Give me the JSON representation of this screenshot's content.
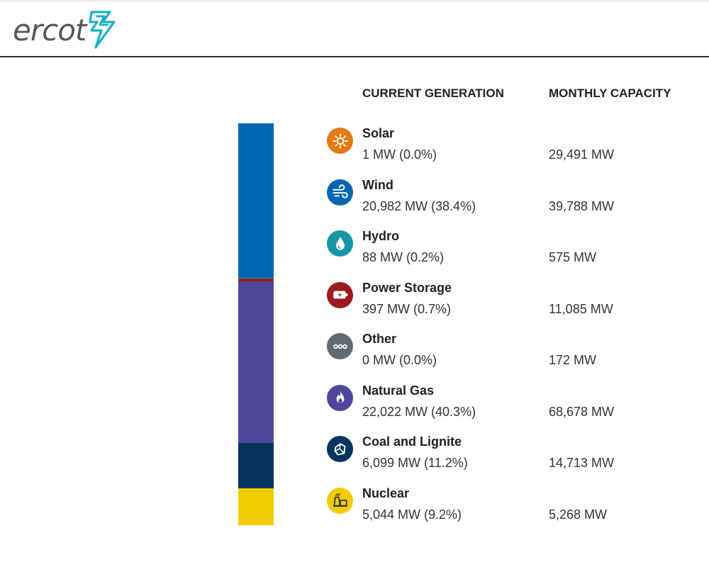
{
  "brand": {
    "name": "ercot",
    "accent_color": "#1ab1c6",
    "logo_text_color": "#55595f"
  },
  "table": {
    "headers": {
      "generation": "CURRENT GENERATION",
      "capacity": "MONTHLY CAPACITY"
    },
    "rows": [
      {
        "name": "Solar",
        "generation": "1 MW (0.0%)",
        "capacity": "29,491 MW",
        "generation_mw": 1,
        "share_pct": 0.0,
        "icon": "sun-icon",
        "color": "#e57a12"
      },
      {
        "name": "Wind",
        "generation": "20,982 MW (38.4%)",
        "capacity": "39,788 MW",
        "generation_mw": 20982,
        "share_pct": 38.4,
        "icon": "wind-icon",
        "color": "#0066b3"
      },
      {
        "name": "Hydro",
        "generation": "88 MW (0.2%)",
        "capacity": "575 MW",
        "generation_mw": 88,
        "share_pct": 0.2,
        "icon": "water-drop-icon",
        "color": "#1596a8"
      },
      {
        "name": "Power Storage",
        "generation": "397 MW (0.7%)",
        "capacity": "11,085 MW",
        "generation_mw": 397,
        "share_pct": 0.7,
        "icon": "battery-icon",
        "color": "#9c1a1e"
      },
      {
        "name": "Other",
        "generation": "0 MW (0.0%)",
        "capacity": "172 MW",
        "generation_mw": 0,
        "share_pct": 0.0,
        "icon": "more-dots-icon",
        "color": "#5f6a72"
      },
      {
        "name": "Natural Gas",
        "generation": "22,022 MW (40.3%)",
        "capacity": "68,678 MW",
        "generation_mw": 22022,
        "share_pct": 40.3,
        "icon": "flame-icon",
        "color": "#4e469a"
      },
      {
        "name": "Coal and Lignite",
        "generation": "6,099 MW (11.2%)",
        "capacity": "14,713 MW",
        "generation_mw": 6099,
        "share_pct": 11.2,
        "icon": "coal-icon",
        "color": "#03355f"
      },
      {
        "name": "Nuclear",
        "generation": "5,044 MW (9.2%)",
        "capacity": "5,268 MW",
        "generation_mw": 5044,
        "share_pct": 9.2,
        "icon": "nuclear-plant-icon",
        "color": "#f2cc00"
      }
    ]
  }
}
